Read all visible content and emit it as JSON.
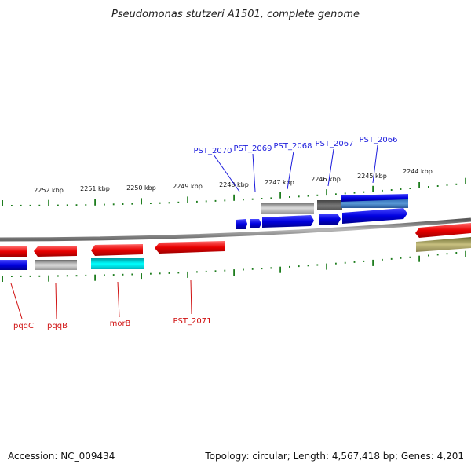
{
  "title": "Pseudomonas stutzeri A1501, complete genome",
  "footer": {
    "accession": "Accession: NC_009434",
    "summary": "Topology: circular; Length: 4,567,418 bp; Genes: 4,201"
  },
  "colors": {
    "backbone": "#8a8a8a",
    "tick": "#1e7d1e",
    "top_label": "#1a1adc",
    "bottom_label": "#d01010"
  },
  "kbp_labels": [
    "2252 kbp",
    "2251 kbp",
    "2250 kbp",
    "2249 kbp",
    "2248 kbp",
    "2247 kbp",
    "2246 kbp",
    "2245 kbp",
    "2244 kbp"
  ],
  "top_genes": [
    "PST_2070",
    "PST_2069",
    "PST_2068",
    "PST_2067",
    "PST_2066"
  ],
  "bottom_genes": [
    "pqqC",
    "pqqB",
    "morB",
    "PST_2071"
  ]
}
